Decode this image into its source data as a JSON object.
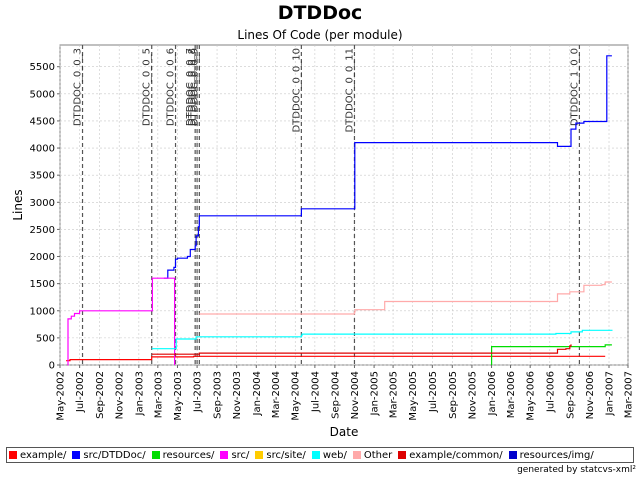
{
  "chart_data": {
    "type": "line",
    "title": "DTDDoc",
    "subtitle": "Lines Of Code (per module)",
    "xlabel": "Date",
    "ylabel": "Lines",
    "xlim": [
      "2002-05-01",
      "2007-03-01"
    ],
    "ylim": [
      0,
      5900
    ],
    "grid": true,
    "legend_position": "bottom",
    "x_ticks": [
      "May-2002",
      "Jul-2002",
      "Sep-2002",
      "Nov-2002",
      "Jan-2003",
      "Mar-2003",
      "May-2003",
      "Jul-2003",
      "Sep-2003",
      "Nov-2003",
      "Jan-2004",
      "Mar-2004",
      "May-2004",
      "Jul-2004",
      "Sep-2004",
      "Nov-2004",
      "Jan-2005",
      "Mar-2005",
      "May-2005",
      "Jul-2005",
      "Sep-2005",
      "Nov-2005",
      "Jan-2006",
      "Mar-2006",
      "May-2006",
      "Jul-2006",
      "Sep-2006",
      "Nov-2006",
      "Jan-2007",
      "Mar-2007"
    ],
    "y_ticks": [
      0,
      500,
      1000,
      1500,
      2000,
      2500,
      3000,
      3500,
      4000,
      4500,
      5000,
      5500
    ],
    "markers": [
      {
        "label": "DTDDOC_0_0_3",
        "date": "2002-07-10"
      },
      {
        "label": "DTDDOC_0_0_5",
        "date": "2003-02-10"
      },
      {
        "label": "DTDDOC_0_0_6",
        "date": "2003-04-25"
      },
      {
        "label": "DTDDOC_0_0_7",
        "date": "2003-06-25"
      },
      {
        "label": "DTDDOC_0_0_8",
        "date": "2003-07-01"
      },
      {
        "label": "DTDDOC_0_0_9",
        "date": "2003-07-08"
      },
      {
        "label": "DTDDOC_0_0_10",
        "date": "2004-05-20"
      },
      {
        "label": "DTDDOC_0_0_11",
        "date": "2004-11-01"
      },
      {
        "label": "DTDDOC_1_0_0",
        "date": "2006-10-01"
      }
    ],
    "series": [
      {
        "name": "example/",
        "color": "#ff0000",
        "points": [
          [
            "2002-05-20",
            80
          ],
          [
            "2002-06-01",
            100
          ],
          [
            "2003-02-10",
            100
          ],
          [
            "2003-02-10",
            150
          ],
          [
            "2003-06-20",
            150
          ],
          [
            "2003-06-20",
            160
          ],
          [
            "2006-08-20",
            160
          ],
          [
            "2006-12-20",
            160
          ]
        ]
      },
      {
        "name": "src/DTDDoc/",
        "color": "#0000ff",
        "points": [
          [
            "2003-03-20",
            1600
          ],
          [
            "2003-04-01",
            1750
          ],
          [
            "2003-04-20",
            1800
          ],
          [
            "2003-04-25",
            1950
          ],
          [
            "2003-05-01",
            1970
          ],
          [
            "2003-06-01",
            2000
          ],
          [
            "2003-06-10",
            2130
          ],
          [
            "2003-06-25",
            2200
          ],
          [
            "2003-06-28",
            2380
          ],
          [
            "2003-07-05",
            2550
          ],
          [
            "2003-07-08",
            2750
          ],
          [
            "2004-05-20",
            2750
          ],
          [
            "2004-05-20",
            2880
          ],
          [
            "2004-11-01",
            2880
          ],
          [
            "2004-11-02",
            4100
          ],
          [
            "2006-07-20",
            4100
          ],
          [
            "2006-07-25",
            4030
          ],
          [
            "2006-09-01",
            4030
          ],
          [
            "2006-09-05",
            4350
          ],
          [
            "2006-09-20",
            4460
          ],
          [
            "2006-10-15",
            4490
          ],
          [
            "2006-12-20",
            4490
          ],
          [
            "2006-12-25",
            5700
          ],
          [
            "2007-01-10",
            5700
          ]
        ]
      },
      {
        "name": "resources/",
        "color": "#00dd00",
        "points": [
          [
            "2006-01-01",
            0
          ],
          [
            "2006-01-01",
            340
          ],
          [
            "2006-12-10",
            340
          ],
          [
            "2006-12-20",
            370
          ],
          [
            "2007-01-10",
            370
          ]
        ]
      },
      {
        "name": "src/",
        "color": "#ff00ff",
        "points": [
          [
            "2002-05-25",
            0
          ],
          [
            "2002-05-26",
            850
          ],
          [
            "2002-06-05",
            900
          ],
          [
            "2002-06-15",
            950
          ],
          [
            "2002-07-01",
            1000
          ],
          [
            "2003-02-10",
            1000
          ],
          [
            "2003-02-12",
            1600
          ],
          [
            "2003-04-20",
            1600
          ],
          [
            "2003-04-22",
            0
          ]
        ]
      },
      {
        "name": "src/site/",
        "color": "#ffcc00",
        "points": []
      },
      {
        "name": "web/",
        "color": "#00ffff",
        "points": [
          [
            "2003-02-10",
            300
          ],
          [
            "2003-04-25",
            300
          ],
          [
            "2003-04-27",
            480
          ],
          [
            "2003-06-25",
            480
          ],
          [
            "2003-06-28",
            520
          ],
          [
            "2004-05-20",
            540
          ],
          [
            "2004-05-22",
            570
          ],
          [
            "2006-07-20",
            580
          ],
          [
            "2006-09-05",
            610
          ],
          [
            "2006-10-10",
            640
          ],
          [
            "2007-01-10",
            650
          ]
        ]
      },
      {
        "name": "Other",
        "color": "#ffaaaa",
        "points": [
          [
            "2003-07-08",
            940
          ],
          [
            "2004-05-20",
            940
          ],
          [
            "2004-11-01",
            980
          ],
          [
            "2004-11-03",
            1020
          ],
          [
            "2005-02-01",
            1020
          ],
          [
            "2005-02-03",
            1170
          ],
          [
            "2006-07-20",
            1170
          ],
          [
            "2006-07-25",
            1310
          ],
          [
            "2006-09-01",
            1350
          ],
          [
            "2006-10-15",
            1470
          ],
          [
            "2006-12-10",
            1480
          ],
          [
            "2006-12-20",
            1530
          ],
          [
            "2007-01-10",
            1530
          ]
        ]
      },
      {
        "name": "example/common/",
        "color": "#dd0000",
        "points": [
          [
            "2003-02-10",
            200
          ],
          [
            "2003-07-08",
            200
          ],
          [
            "2003-07-08",
            220
          ],
          [
            "2006-07-20",
            220
          ],
          [
            "2006-07-25",
            290
          ],
          [
            "2006-08-20",
            300
          ],
          [
            "2006-09-01",
            350
          ],
          [
            "2006-09-05",
            380
          ]
        ]
      },
      {
        "name": "resources/img/",
        "color": "#0000cc",
        "points": []
      }
    ]
  },
  "footer": "generated by statcvs-xml²"
}
